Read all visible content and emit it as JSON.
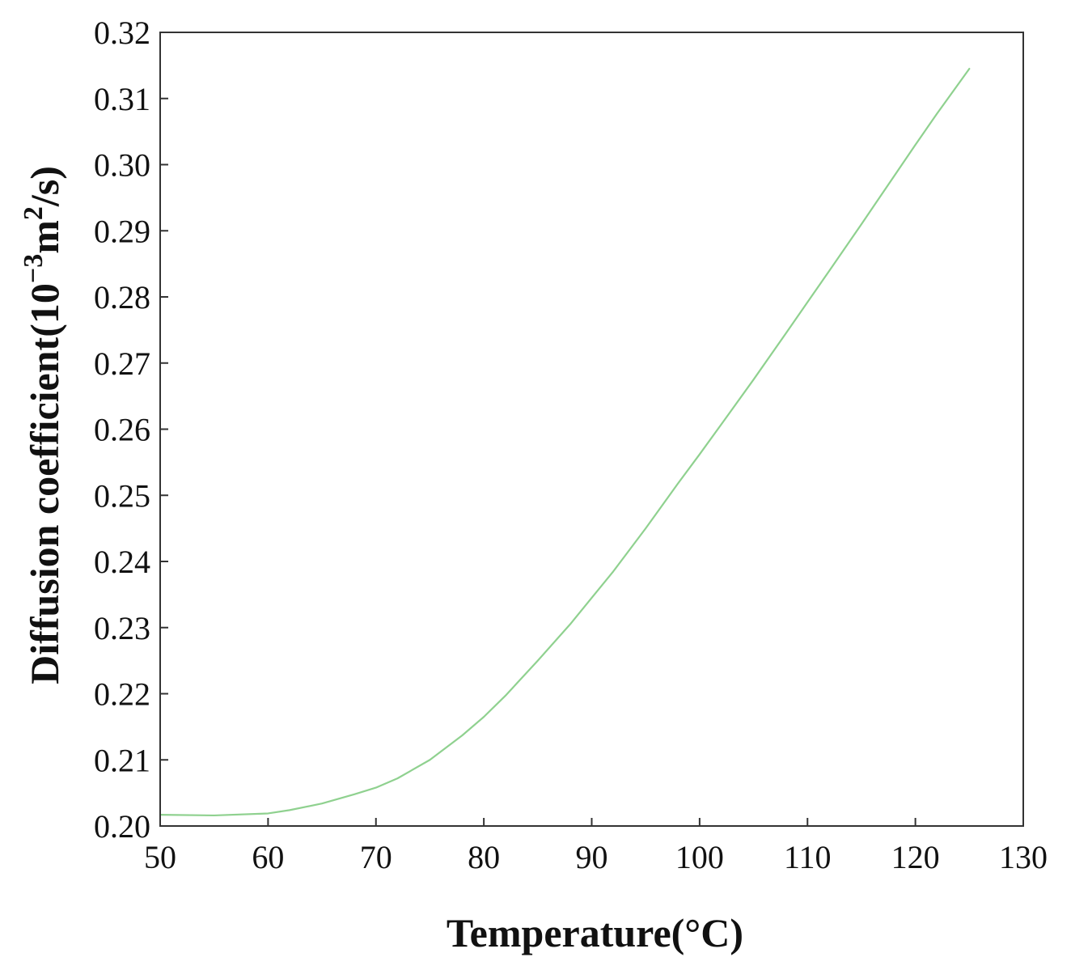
{
  "chart_data": {
    "type": "line",
    "title": "",
    "xlabel": "Temperature(°C)",
    "ylabel": {
      "prefix": "Diffusion coefficient(10",
      "exp1": "−3",
      "mid": "m",
      "exp2": "2",
      "suffix": "/s)"
    },
    "xlim": [
      50,
      130
    ],
    "ylim": [
      0.2,
      0.32
    ],
    "xticks": [
      50,
      60,
      70,
      80,
      90,
      100,
      110,
      120,
      130
    ],
    "xtick_labels": [
      "50",
      "60",
      "70",
      "80",
      "90",
      "100",
      "110",
      "120",
      "130"
    ],
    "yticks": [
      0.2,
      0.21,
      0.22,
      0.23,
      0.24,
      0.25,
      0.26,
      0.27,
      0.28,
      0.29,
      0.3,
      0.31,
      0.32
    ],
    "ytick_labels": [
      "0.20",
      "0.21",
      "0.22",
      "0.23",
      "0.24",
      "0.25",
      "0.26",
      "0.27",
      "0.28",
      "0.29",
      "0.30",
      "0.31",
      "0.32"
    ],
    "grid": false,
    "legend": "none",
    "series": [
      {
        "color": "#8fd18f",
        "x": [
          50,
          55,
          60,
          62,
          65,
          68,
          70,
          72,
          75,
          78,
          80,
          82,
          85,
          88,
          90,
          92,
          95,
          98,
          100,
          102,
          105,
          108,
          110,
          112,
          115,
          118,
          120,
          122,
          125
        ],
        "y": [
          0.2017,
          0.2016,
          0.2019,
          0.2024,
          0.2034,
          0.2048,
          0.2058,
          0.2072,
          0.21,
          0.2137,
          0.2165,
          0.2197,
          0.225,
          0.2305,
          0.2345,
          0.2385,
          0.245,
          0.2518,
          0.2562,
          0.2607,
          0.2675,
          0.2745,
          0.2792,
          0.2839,
          0.291,
          0.2982,
          0.303,
          0.3077,
          0.3145
        ]
      }
    ]
  }
}
